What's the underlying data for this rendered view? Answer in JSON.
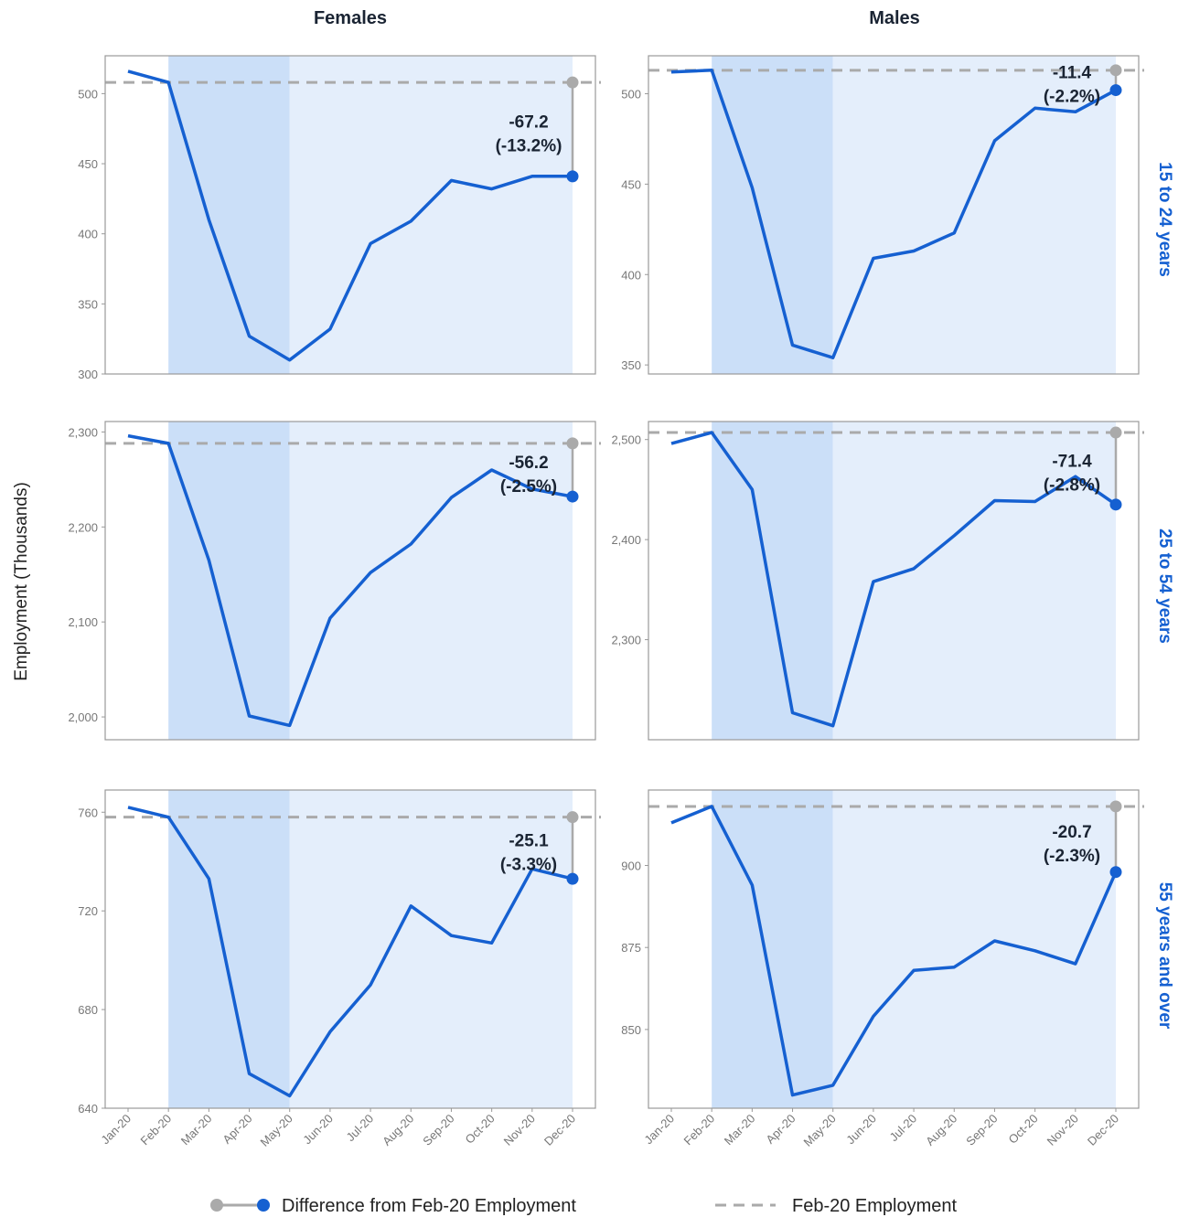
{
  "chart_data": {
    "type": "line",
    "layout": "faceted-grid",
    "column_titles": [
      "Females",
      "Males"
    ],
    "row_titles": [
      "15 to 24 years",
      "25 to 54 years",
      "55 years and over"
    ],
    "ylabel": "Employment (Thousands)",
    "months": [
      "Jan-20",
      "Feb-20",
      "Mar-20",
      "Apr-20",
      "May-20",
      "Jun-20",
      "Jul-20",
      "Aug-20",
      "Sep-20",
      "Oct-20",
      "Nov-20",
      "Dec-20"
    ],
    "shading": {
      "dark": {
        "from": "Feb-20",
        "to": "May-20",
        "color": "#cbdff8"
      },
      "light": {
        "from": "May-20",
        "to": "Dec-20",
        "color": "#e4eefb"
      }
    },
    "colors": {
      "line": "#1560d1",
      "reference": "#aaaaaa",
      "marker_end": "#1560d1",
      "marker_ref": "#aaaaaa"
    },
    "legend": {
      "difference": "Difference from Feb-20 Employment",
      "reference": "Feb-20 Employment",
      "position": "bottom"
    },
    "panels": [
      {
        "column": "Females",
        "row": "15 to 24 years",
        "values": [
          516,
          508,
          410,
          327,
          310,
          332,
          393,
          409,
          438,
          432,
          441,
          441
        ],
        "reference": 508,
        "ylim": [
          300,
          527
        ],
        "yticks": [
          300,
          350,
          400,
          450,
          500
        ],
        "tick_labels": [
          "300",
          "350",
          "400",
          "450",
          "500"
        ],
        "annotation": [
          "-67.2",
          "(-13.2%)"
        ]
      },
      {
        "column": "Males",
        "row": "15 to 24 years",
        "values": [
          512,
          513,
          448,
          361,
          354,
          409,
          413,
          423,
          474,
          492,
          490,
          502
        ],
        "reference": 513,
        "ylim": [
          345,
          521
        ],
        "yticks": [
          350,
          400,
          450,
          500
        ],
        "tick_labels": [
          "350",
          "400",
          "450",
          "500"
        ],
        "annotation": [
          "-11.4",
          "(-2.2%)"
        ]
      },
      {
        "column": "Females",
        "row": "25 to 54 years",
        "values": [
          2296,
          2288,
          2165,
          2001,
          1991,
          2104,
          2152,
          2182,
          2231,
          2260,
          2240,
          2232
        ],
        "reference": 2288,
        "ylim": [
          1976,
          2311
        ],
        "yticks": [
          2000,
          2100,
          2200,
          2300
        ],
        "tick_labels": [
          "2,000",
          "2,100",
          "2,200",
          "2,300"
        ],
        "annotation": [
          "-56.2",
          "(-2.5%)"
        ]
      },
      {
        "column": "Males",
        "row": "25 to 54 years",
        "values": [
          2496,
          2507,
          2450,
          2227,
          2214,
          2358,
          2371,
          2404,
          2439,
          2438,
          2463,
          2435
        ],
        "reference": 2507,
        "ylim": [
          2200,
          2518
        ],
        "yticks": [
          2300,
          2400,
          2500
        ],
        "tick_labels": [
          "2,300",
          "2,400",
          "2,500"
        ],
        "annotation": [
          "-71.4",
          "(-2.8%)"
        ]
      },
      {
        "column": "Females",
        "row": "55 years and over",
        "values": [
          762,
          758,
          733,
          654,
          645,
          671,
          690,
          722,
          710,
          707,
          737,
          733
        ],
        "reference": 758,
        "ylim": [
          640,
          769
        ],
        "yticks": [
          640,
          680,
          720,
          760
        ],
        "tick_labels": [
          "640",
          "680",
          "720",
          "760"
        ],
        "annotation": [
          "-25.1",
          "(-3.3%)"
        ]
      },
      {
        "column": "Males",
        "row": "55 years and over",
        "values": [
          913,
          918,
          894,
          830,
          833,
          854,
          868,
          869,
          877,
          874,
          870,
          898
        ],
        "reference": 918,
        "ylim": [
          826,
          923
        ],
        "yticks": [
          850,
          875,
          900
        ],
        "tick_labels": [
          "850",
          "875",
          "900"
        ],
        "annotation": [
          "-20.7",
          "(-2.3%)"
        ]
      }
    ]
  }
}
